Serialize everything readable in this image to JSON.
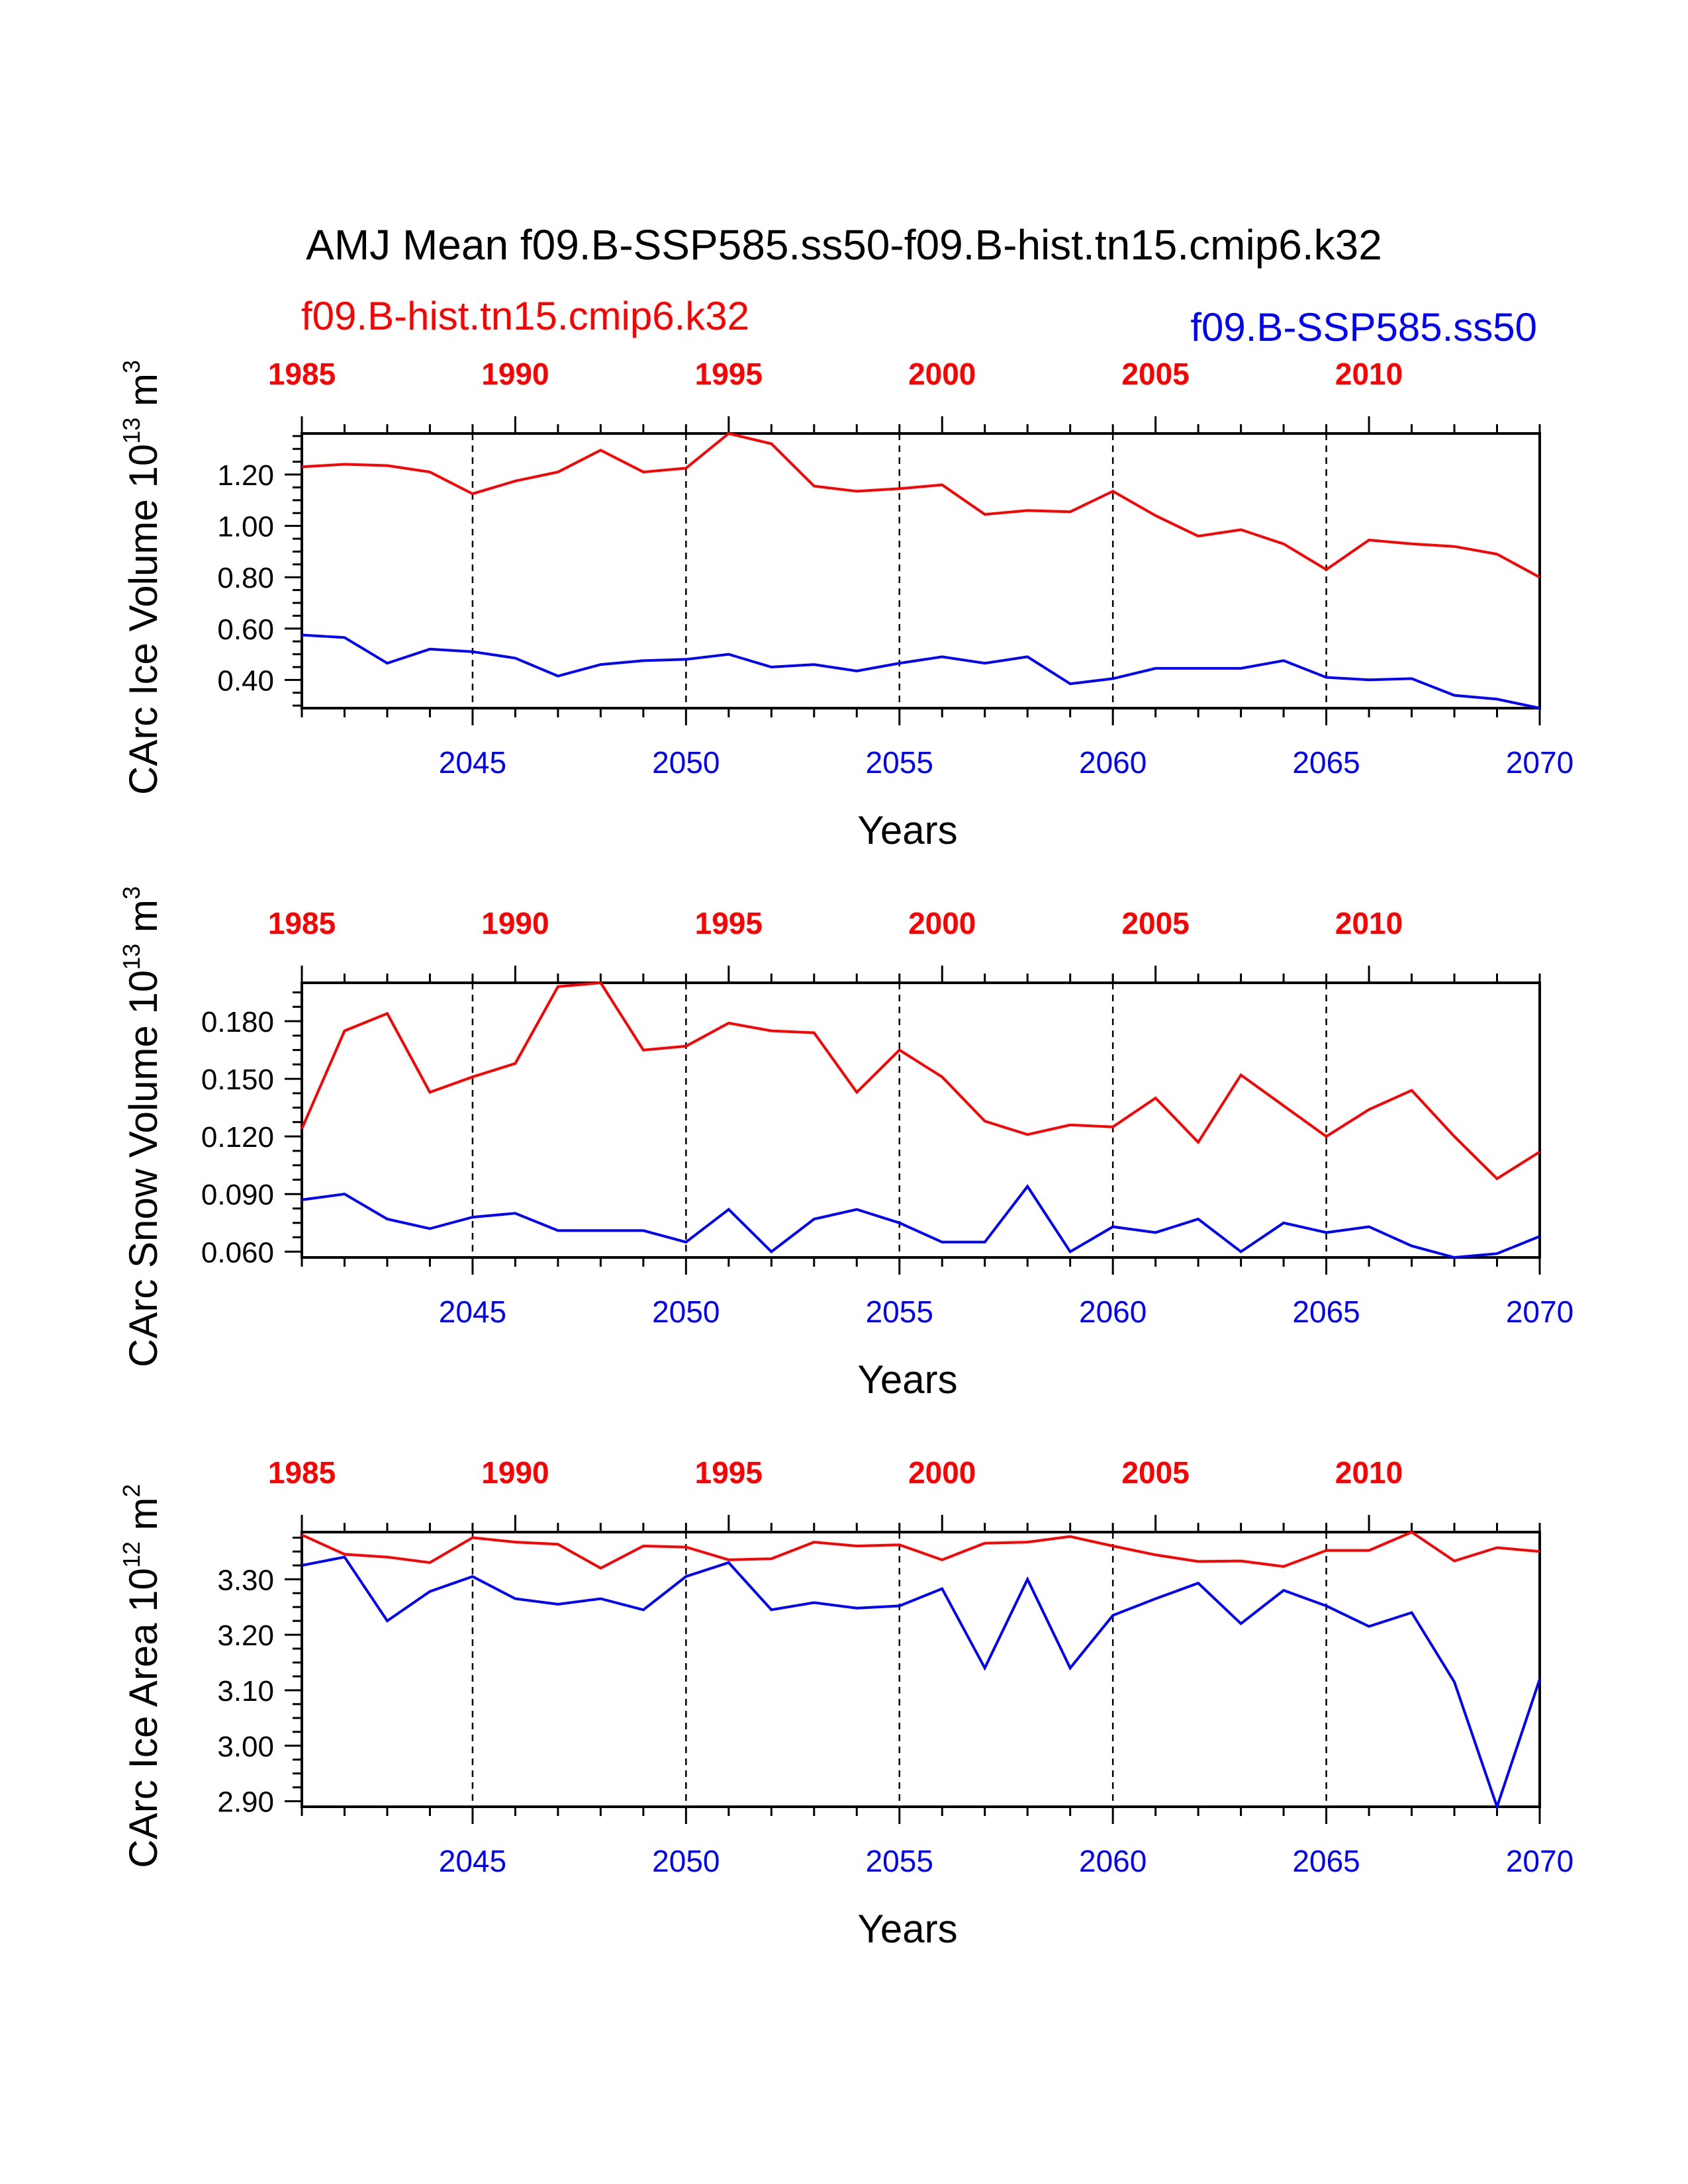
{
  "figure": {
    "title": "AMJ Mean f09.B-SSP585.ss50-f09.B-hist.tn15.cmip6.k32",
    "legend_left": "f09.B-hist.tn15.cmip6.k32",
    "legend_right": "f09.B-SSP585.ss50",
    "colors": {
      "hist": "#ff0000",
      "ssp": "#0000ff"
    }
  },
  "chart_data": [
    {
      "type": "line",
      "ylabel_main": "CArc Ice Volume 10",
      "ylabel_exp": "13",
      "ylabel_unit": " m",
      "ylabel_unit_exp": "3",
      "xlabel": "Years",
      "ylim": [
        0.29,
        1.36
      ],
      "yticks": [
        0.4,
        0.6,
        0.8,
        1.0,
        1.2
      ],
      "ytick_labels": [
        "0.40",
        "0.60",
        "0.80",
        "1.00",
        "1.20"
      ],
      "x_bottom": [
        2041,
        2042,
        2043,
        2044,
        2045,
        2046,
        2047,
        2048,
        2049,
        2050,
        2051,
        2052,
        2053,
        2054,
        2055,
        2056,
        2057,
        2058,
        2059,
        2060,
        2061,
        2062,
        2063,
        2064,
        2065,
        2066,
        2067,
        2068,
        2069,
        2070
      ],
      "xticks_bottom": [
        "2045",
        "2050",
        "2055",
        "2060",
        "2065",
        "2070"
      ],
      "xticks_top": [
        "1985",
        "1990",
        "1995",
        "2000",
        "2005",
        "2010"
      ],
      "series": [
        {
          "name": "f09.B-hist.tn15.cmip6.k32",
          "color": "#ff0000",
          "values": [
            1.23,
            1.24,
            1.235,
            1.21,
            1.125,
            1.175,
            1.21,
            1.295,
            1.21,
            1.225,
            1.36,
            1.32,
            1.155,
            1.135,
            1.145,
            1.16,
            1.045,
            1.06,
            1.055,
            1.135,
            1.04,
            0.96,
            0.985,
            0.93,
            0.83,
            0.945,
            0.93,
            0.92,
            0.89,
            0.8
          ]
        },
        {
          "name": "f09.B-SSP585.ss50",
          "color": "#0000ff",
          "values": [
            0.575,
            0.565,
            0.465,
            0.52,
            0.51,
            0.485,
            0.415,
            0.46,
            0.475,
            0.48,
            0.5,
            0.45,
            0.46,
            0.435,
            0.465,
            0.49,
            0.465,
            0.49,
            0.385,
            0.405,
            0.445,
            0.445,
            0.445,
            0.475,
            0.41,
            0.4,
            0.405,
            0.34,
            0.325,
            0.29
          ]
        }
      ]
    },
    {
      "type": "line",
      "ylabel_main": "CArc Snow Volume 10",
      "ylabel_exp": "13",
      "ylabel_unit": " m",
      "ylabel_unit_exp": "3",
      "xlabel": "Years",
      "ylim": [
        0.057,
        0.2
      ],
      "yticks": [
        0.06,
        0.09,
        0.12,
        0.15,
        0.18
      ],
      "ytick_labels": [
        "0.060",
        "0.090",
        "0.120",
        "0.150",
        "0.180"
      ],
      "x_bottom": [
        2041,
        2042,
        2043,
        2044,
        2045,
        2046,
        2047,
        2048,
        2049,
        2050,
        2051,
        2052,
        2053,
        2054,
        2055,
        2056,
        2057,
        2058,
        2059,
        2060,
        2061,
        2062,
        2063,
        2064,
        2065,
        2066,
        2067,
        2068,
        2069,
        2070
      ],
      "xticks_bottom": [
        "2045",
        "2050",
        "2055",
        "2060",
        "2065",
        "2070"
      ],
      "xticks_top": [
        "1985",
        "1990",
        "1995",
        "2000",
        "2005",
        "2010"
      ],
      "series": [
        {
          "name": "f09.B-hist.tn15.cmip6.k32",
          "color": "#ff0000",
          "values": [
            0.124,
            0.175,
            0.184,
            0.143,
            0.151,
            0.158,
            0.198,
            0.2,
            0.165,
            0.167,
            0.179,
            0.175,
            0.174,
            0.143,
            0.165,
            0.151,
            0.128,
            0.121,
            0.126,
            0.125,
            0.14,
            0.117,
            0.152,
            0.136,
            0.12,
            0.134,
            0.144,
            0.12,
            0.098,
            0.112
          ]
        },
        {
          "name": "f09.B-SSP585.ss50",
          "color": "#0000ff",
          "values": [
            0.087,
            0.09,
            0.077,
            0.072,
            0.078,
            0.08,
            0.071,
            0.071,
            0.071,
            0.065,
            0.082,
            0.06,
            0.077,
            0.082,
            0.075,
            0.065,
            0.065,
            0.094,
            0.06,
            0.073,
            0.07,
            0.077,
            0.06,
            0.075,
            0.07,
            0.073,
            0.063,
            0.057,
            0.059,
            0.068
          ]
        }
      ]
    },
    {
      "type": "line",
      "ylabel_main": "CArc Ice Area 10",
      "ylabel_exp": "12",
      "ylabel_unit": " m",
      "ylabel_unit_exp": "2",
      "xlabel": "Years",
      "ylim": [
        2.89,
        3.385
      ],
      "yticks": [
        2.9,
        3.0,
        3.1,
        3.2,
        3.3
      ],
      "ytick_labels": [
        "2.90",
        "3.00",
        "3.10",
        "3.20",
        "3.30"
      ],
      "x_bottom": [
        2041,
        2042,
        2043,
        2044,
        2045,
        2046,
        2047,
        2048,
        2049,
        2050,
        2051,
        2052,
        2053,
        2054,
        2055,
        2056,
        2057,
        2058,
        2059,
        2060,
        2061,
        2062,
        2063,
        2064,
        2065,
        2066,
        2067,
        2068,
        2069,
        2070
      ],
      "xticks_bottom": [
        "2045",
        "2050",
        "2055",
        "2060",
        "2065",
        "2070"
      ],
      "xticks_top": [
        "1985",
        "1990",
        "1995",
        "2000",
        "2005",
        "2010"
      ],
      "series": [
        {
          "name": "f09.B-hist.tn15.cmip6.k32",
          "color": "#ff0000",
          "values": [
            3.38,
            3.345,
            3.34,
            3.33,
            3.375,
            3.367,
            3.363,
            3.32,
            3.36,
            3.358,
            3.335,
            3.337,
            3.367,
            3.36,
            3.362,
            3.335,
            3.365,
            3.367,
            3.377,
            3.36,
            3.344,
            3.332,
            3.333,
            3.323,
            3.352,
            3.352,
            3.385,
            3.333,
            3.357,
            3.35
          ]
        },
        {
          "name": "f09.B-SSP585.ss50",
          "color": "#0000ff",
          "values": [
            3.325,
            3.34,
            3.225,
            3.278,
            3.305,
            3.265,
            3.255,
            3.265,
            3.245,
            3.305,
            3.33,
            3.245,
            3.258,
            3.248,
            3.252,
            3.283,
            3.14,
            3.3,
            3.14,
            3.235,
            3.265,
            3.293,
            3.22,
            3.28,
            3.252,
            3.215,
            3.24,
            3.115,
            2.89,
            3.12
          ]
        }
      ]
    }
  ]
}
